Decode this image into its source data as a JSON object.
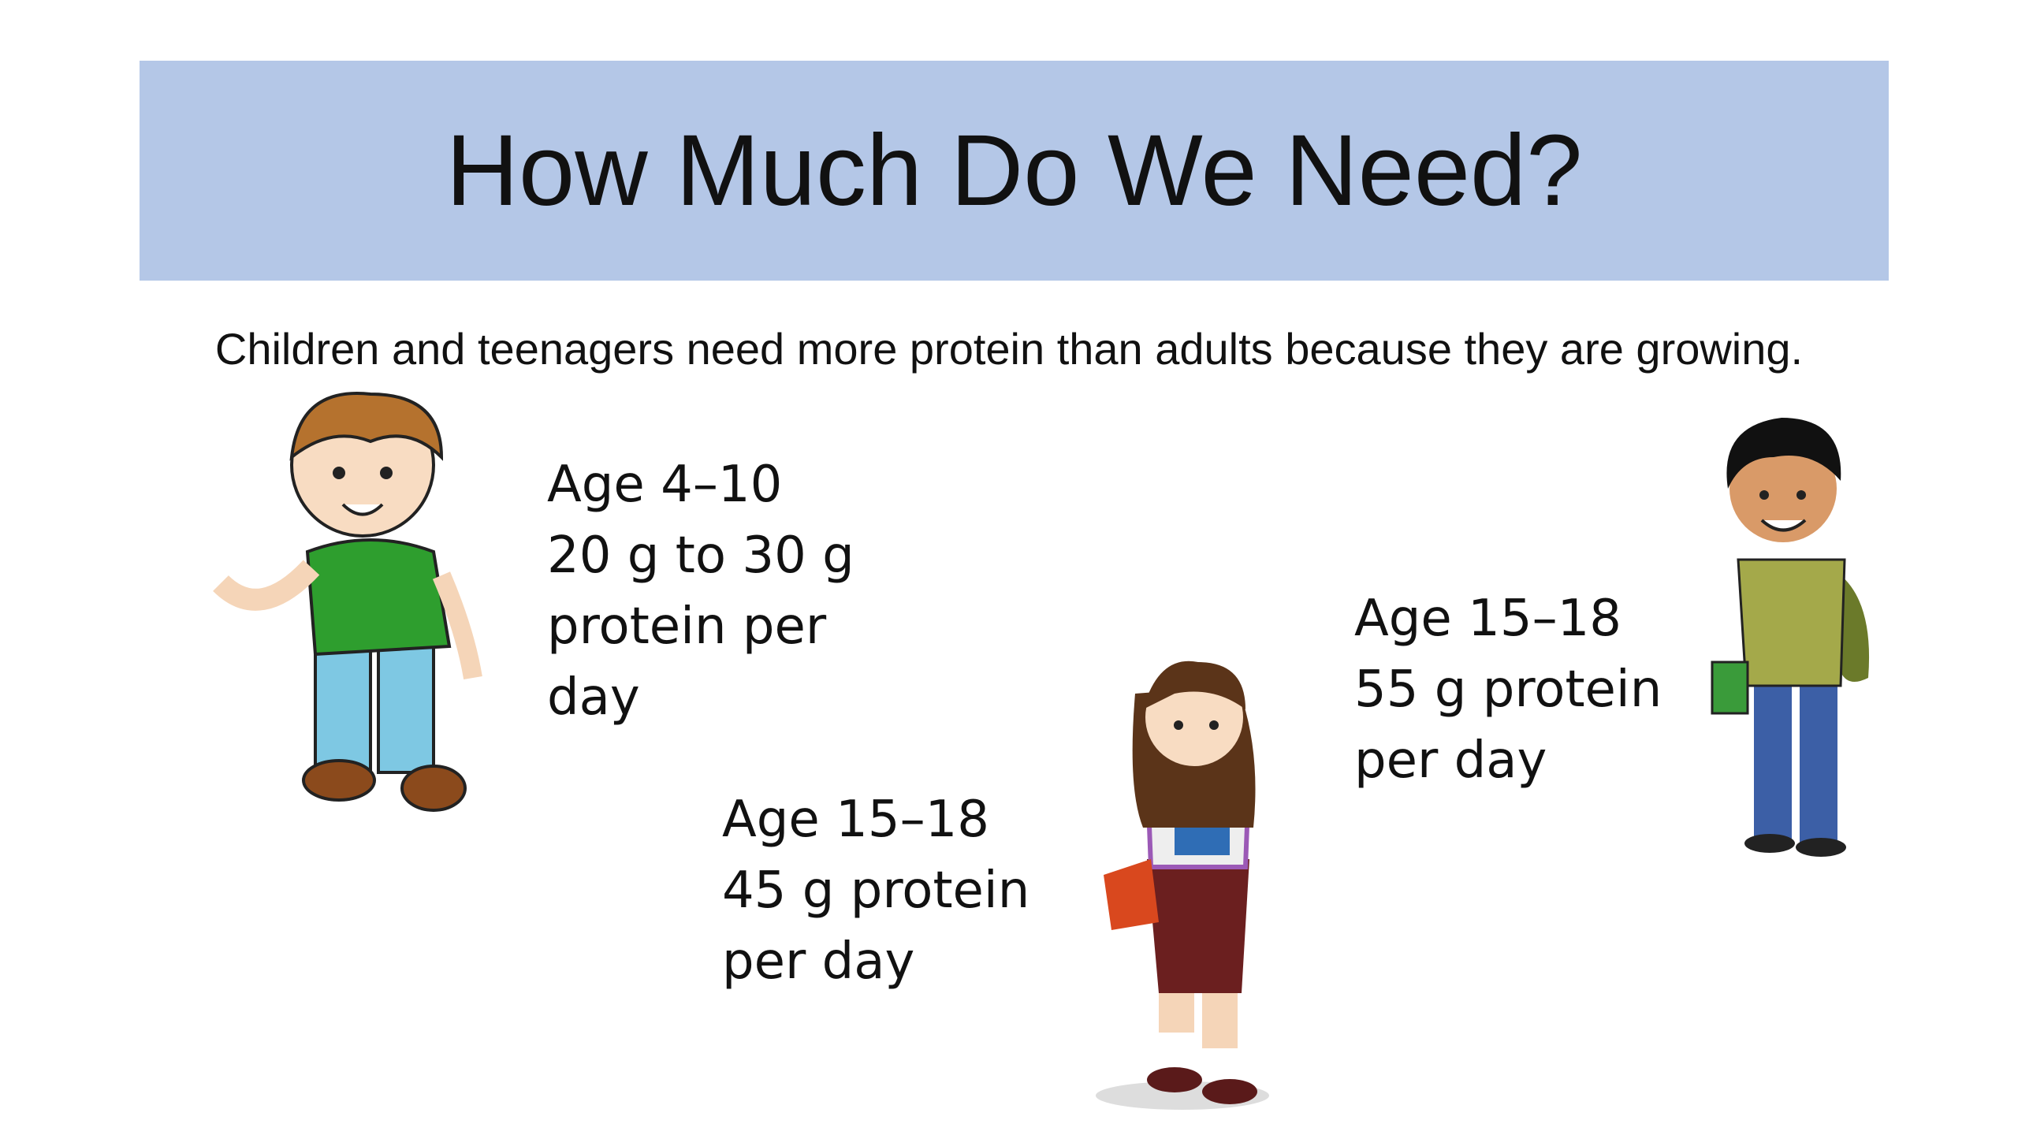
{
  "header": {
    "title": "How Much Do We Need?"
  },
  "subtitle": "Children and teenagers need more protein than adults because they are growing.",
  "groups": [
    {
      "lines": [
        "Age 4–10",
        "20 g to 30 g",
        "protein per",
        "day"
      ]
    },
    {
      "lines": [
        "Age 15–18",
        "45 g protein",
        "per day"
      ]
    },
    {
      "lines": [
        "Age 15–18",
        "55 g protein",
        "per day"
      ]
    }
  ]
}
